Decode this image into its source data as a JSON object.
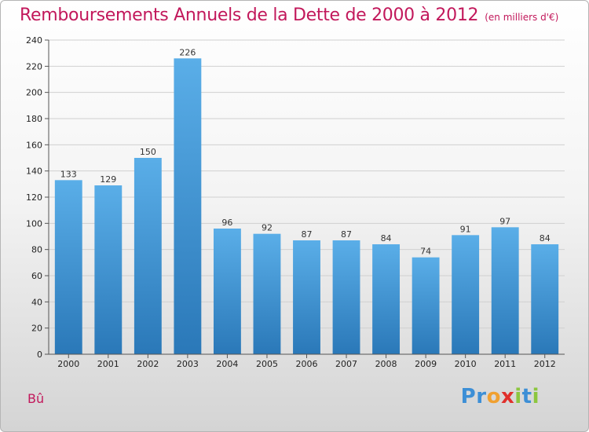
{
  "header": {
    "title": "Remboursements Annuels de la Dette de 2000 à 2012",
    "unit": "(en milliers d'€)"
  },
  "footer": {
    "place": "Bû",
    "brand": [
      "P",
      "r",
      "o",
      "x",
      "i",
      "t",
      "i"
    ],
    "brand_colors": [
      "#3d8fd6",
      "#3d8fd6",
      "#f0a030",
      "#e0302c",
      "#8cc63f",
      "#3d8fd6",
      "#8cc63f"
    ]
  },
  "chart_data": {
    "type": "bar",
    "title": "Remboursements Annuels de la Dette de 2000 à 2012",
    "categories": [
      "2000",
      "2001",
      "2002",
      "2003",
      "2004",
      "2005",
      "2006",
      "2007",
      "2008",
      "2009",
      "2010",
      "2011",
      "2012"
    ],
    "values": [
      133,
      129,
      150,
      226,
      96,
      92,
      87,
      87,
      84,
      74,
      91,
      97,
      84
    ],
    "ylim": [
      0,
      240
    ],
    "yticks": [
      0,
      20,
      40,
      60,
      80,
      100,
      120,
      140,
      160,
      180,
      200,
      220,
      240
    ],
    "grid": true,
    "colors": {
      "bar_top": "#5aaee8",
      "bar_bottom": "#2a78b8"
    }
  }
}
